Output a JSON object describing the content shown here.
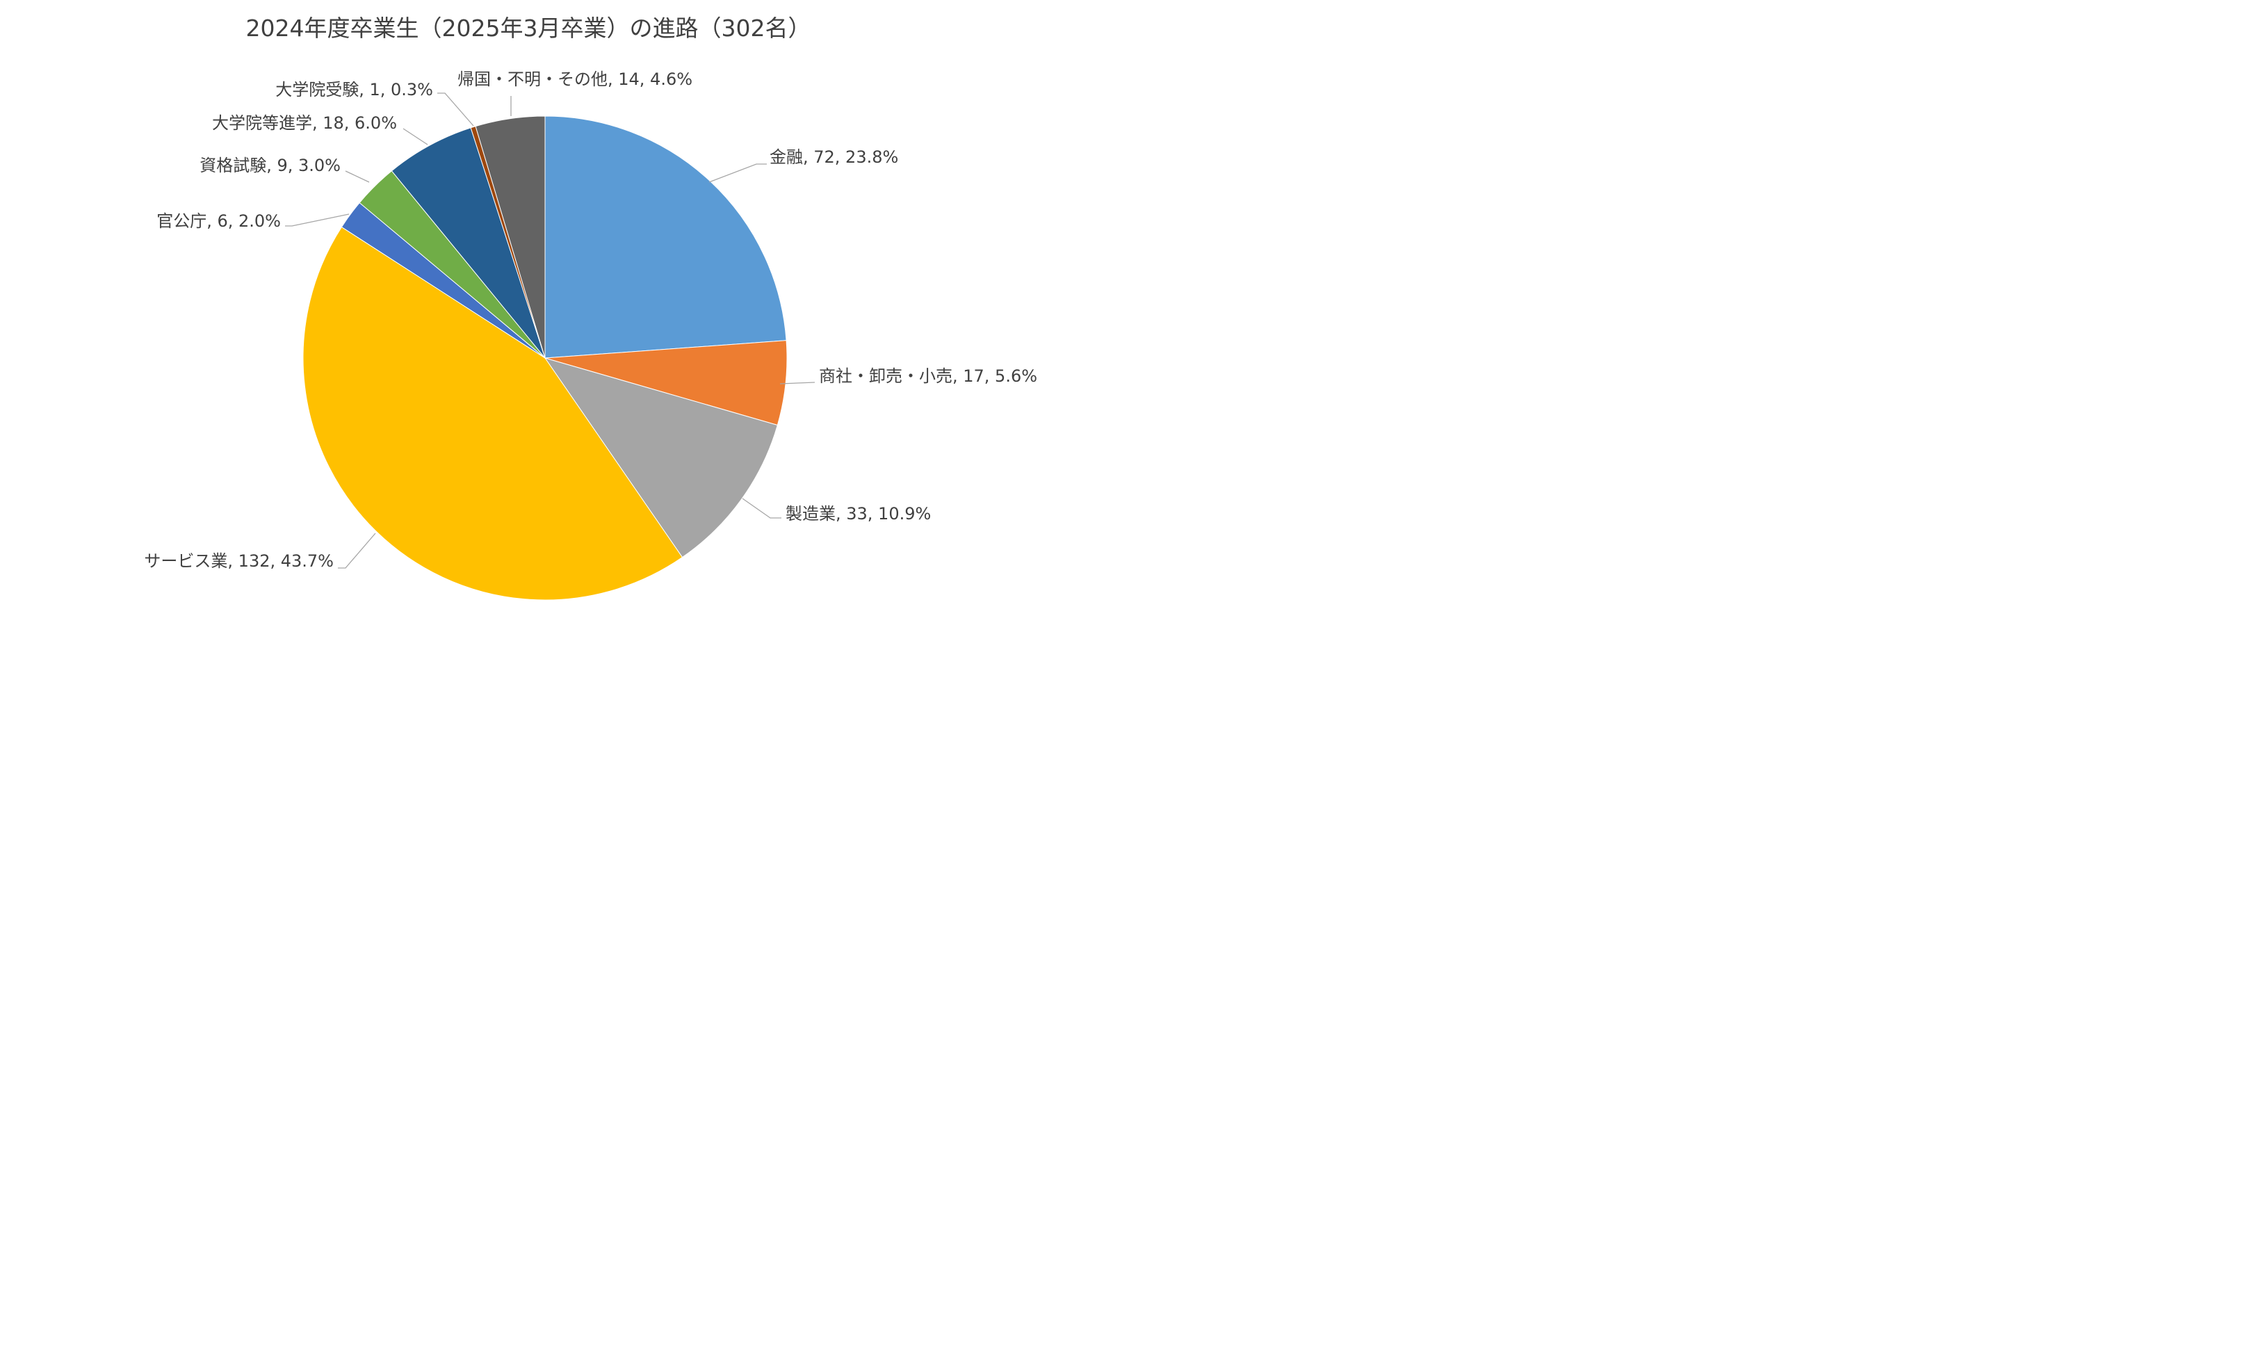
{
  "chart_data": {
    "type": "pie",
    "title": "2024年度卒業生（2025年3月卒業）の進路（302名）",
    "start_angle_deg": 0,
    "direction": "clockwise",
    "slices": [
      {
        "name": "金融",
        "value": 72,
        "percent": "23.8%",
        "color": "#5b9bd5",
        "label": "金融, 72, 23.8%"
      },
      {
        "name": "商社・卸売・小売",
        "value": 17,
        "percent": "5.6%",
        "color": "#ed7d31",
        "label": "商社・卸売・小売, 17, 5.6%"
      },
      {
        "name": "製造業",
        "value": 33,
        "percent": "10.9%",
        "color": "#a5a5a5",
        "label": "製造業, 33, 10.9%"
      },
      {
        "name": "サービス業",
        "value": 132,
        "percent": "43.7%",
        "color": "#ffc000",
        "label": "サービス業, 132, 43.7%"
      },
      {
        "name": "官公庁",
        "value": 6,
        "percent": "2.0%",
        "color": "#4472c4",
        "label": "官公庁, 6, 2.0%"
      },
      {
        "name": "資格試験",
        "value": 9,
        "percent": "3.0%",
        "color": "#70ad47",
        "label": "資格試験, 9, 3.0%"
      },
      {
        "name": "大学院等進学",
        "value": 18,
        "percent": "6.0%",
        "color": "#255e91",
        "label": "大学院等進学, 18, 6.0%"
      },
      {
        "name": "大学院受験",
        "value": 1,
        "percent": "0.3%",
        "color": "#9e480e",
        "label": "大学院受験, 1, 0.3%"
      },
      {
        "name": "帰国・不明・その他",
        "value": 14,
        "percent": "4.6%",
        "color": "#636363",
        "label": "帰国・不明・その他, 14, 4.6%"
      }
    ]
  }
}
